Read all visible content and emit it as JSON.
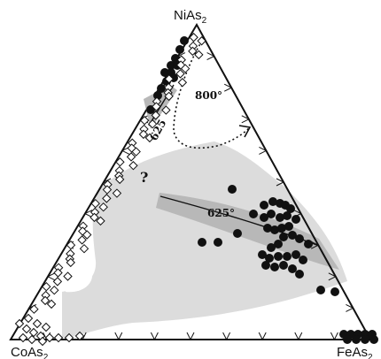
{
  "vertices": {
    "top": {
      "base": "NiAs",
      "sub": "2"
    },
    "left": {
      "base": "CoAs",
      "sub": "2"
    },
    "right": {
      "base": "FeAs",
      "sub": "2"
    }
  },
  "annotations": {
    "isotherm_800": "800°",
    "isotherm_625_center": "625°",
    "isotherm_625_left": "625",
    "question": "?"
  },
  "colors": {
    "outline": "#111111",
    "field_light": "#dcdcdc",
    "field_mid": "#b8b8b8",
    "dot": "#111111",
    "diamond_fill": "#ffffff"
  },
  "legend_symbols": [
    "filled-circle",
    "open-diamond"
  ]
}
